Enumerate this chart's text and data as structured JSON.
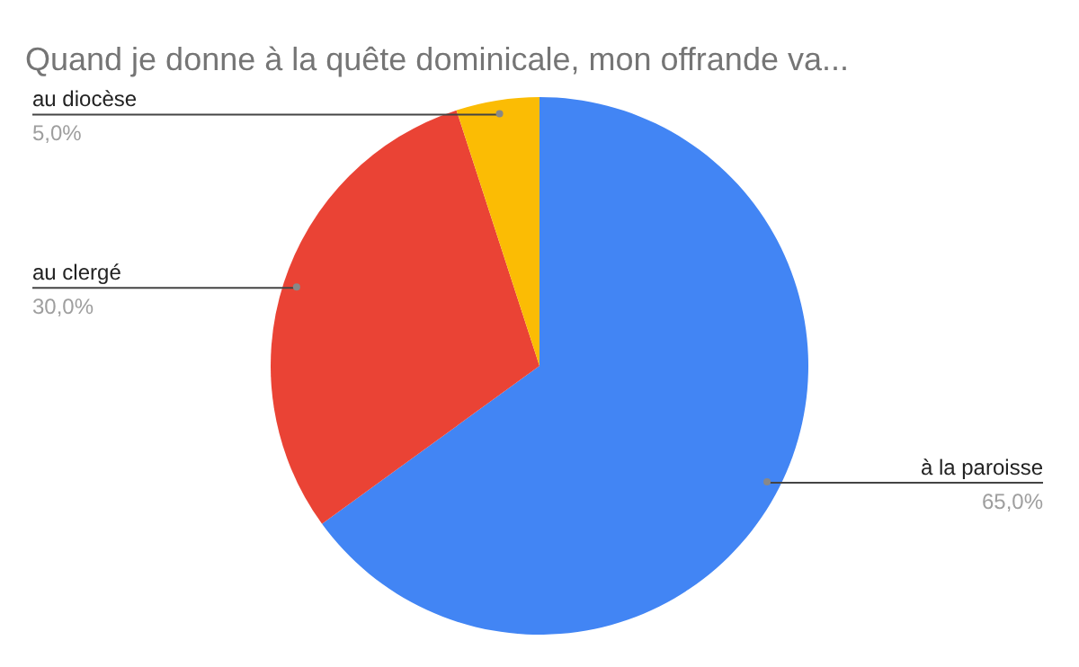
{
  "chart_data": {
    "type": "pie",
    "title": "Quand je donne à la quête dominicale, mon offrande va...",
    "categories": [
      "à la paroisse",
      "au clergé",
      "au diocèse"
    ],
    "values": [
      65,
      30,
      5
    ],
    "colors": [
      "#4285f4",
      "#ea4335",
      "#fbbc04"
    ],
    "value_labels": [
      "65,0%",
      "30,0%",
      "5,0%"
    ],
    "legend": false
  }
}
